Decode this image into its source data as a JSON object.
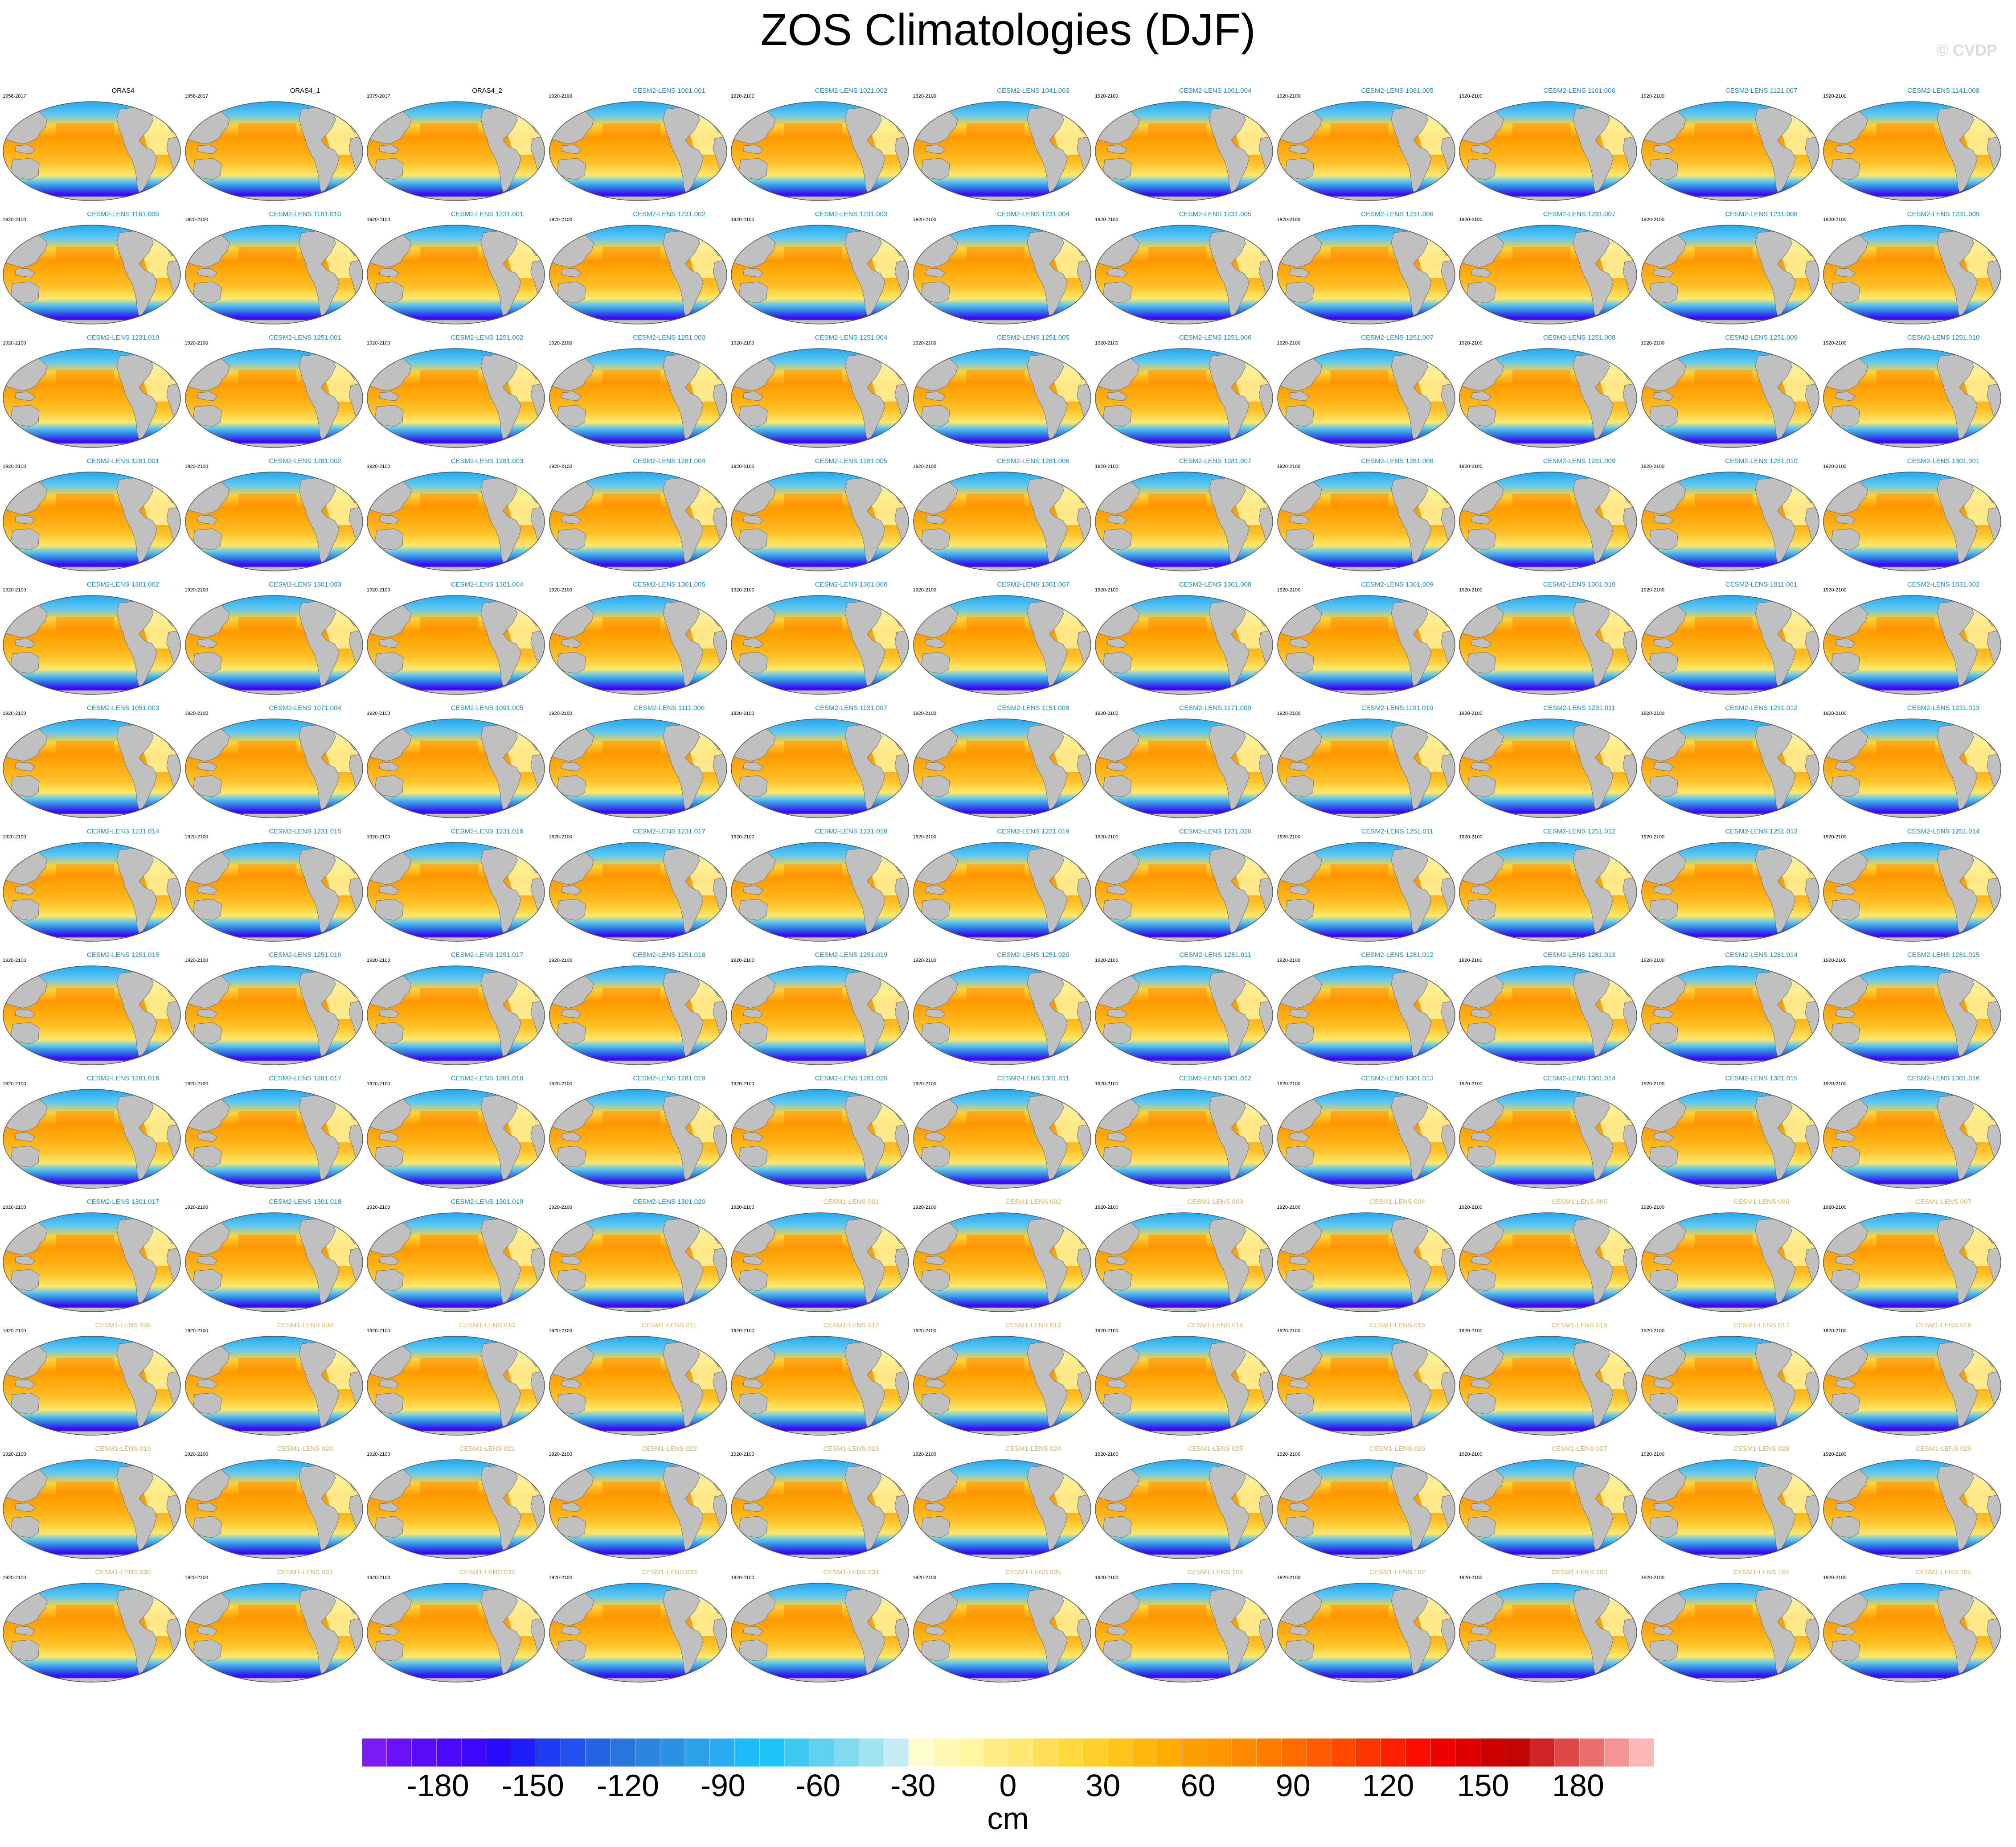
{
  "title": "ZOS Climatologies (DJF)",
  "watermark": "© CVDP",
  "colors": {
    "land": "#c0c0c0",
    "title_obs": "#000000",
    "title_cesm2": "#1e90d8",
    "title_cesm1": "#d8b86a"
  },
  "chart_data": {
    "type": "heatmap",
    "description_type": "map-panel-grid",
    "title": "ZOS Climatologies (DJF)",
    "projection": "robinson",
    "panels": [
      {
        "name": "ORAS4",
        "years": "1958-2017",
        "group": "obs"
      },
      {
        "name": "ORAS4_1",
        "years": "1958-2017",
        "group": "obs"
      },
      {
        "name": "ORAS4_2",
        "years": "1979-2017",
        "group": "obs"
      },
      {
        "name": "CESM2-LENS 1001.001",
        "years": "1920-2100",
        "group": "cesm2"
      },
      {
        "name": "CESM2-LENS 1021.002",
        "years": "1920-2100",
        "group": "cesm2"
      },
      {
        "name": "CESM2-LENS 1041.003",
        "years": "1920-2100",
        "group": "cesm2"
      },
      {
        "name": "CESM2-LENS 1061.004",
        "years": "1920-2100",
        "group": "cesm2"
      },
      {
        "name": "CESM2-LENS 1081.005",
        "years": "1920-2100",
        "group": "cesm2"
      },
      {
        "name": "CESM2-LENS 1101.006",
        "years": "1920-2100",
        "group": "cesm2"
      },
      {
        "name": "CESM2-LENS 1121.007",
        "years": "1920-2100",
        "group": "cesm2"
      },
      {
        "name": "CESM2-LENS 1141.008",
        "years": "1920-2100",
        "group": "cesm2"
      },
      {
        "name": "CESM2-LENS 1161.009",
        "years": "1920-2100",
        "group": "cesm2"
      },
      {
        "name": "CESM2-LENS 1181.010",
        "years": "1920-2100",
        "group": "cesm2"
      },
      {
        "name": "CESM2-LENS 1231.001",
        "years": "1920-2100",
        "group": "cesm2"
      },
      {
        "name": "CESM2-LENS 1231.002",
        "years": "1920-2100",
        "group": "cesm2"
      },
      {
        "name": "CESM2-LENS 1231.003",
        "years": "1920-2100",
        "group": "cesm2"
      },
      {
        "name": "CESM2-LENS 1231.004",
        "years": "1920-2100",
        "group": "cesm2"
      },
      {
        "name": "CESM2-LENS 1231.005",
        "years": "1920-2100",
        "group": "cesm2"
      },
      {
        "name": "CESM2-LENS 1231.006",
        "years": "1920-2100",
        "group": "cesm2"
      },
      {
        "name": "CESM2-LENS 1231.007",
        "years": "1920-2100",
        "group": "cesm2"
      },
      {
        "name": "CESM2-LENS 1231.008",
        "years": "1920-2100",
        "group": "cesm2"
      },
      {
        "name": "CESM2-LENS 1231.009",
        "years": "1920-2100",
        "group": "cesm2"
      },
      {
        "name": "CESM2-LENS 1231.010",
        "years": "1920-2100",
        "group": "cesm2"
      },
      {
        "name": "CESM2-LENS 1251.001",
        "years": "1920-2100",
        "group": "cesm2"
      },
      {
        "name": "CESM2-LENS 1251.002",
        "years": "1920-2100",
        "group": "cesm2"
      },
      {
        "name": "CESM2-LENS 1251.003",
        "years": "1920-2100",
        "group": "cesm2"
      },
      {
        "name": "CESM2-LENS 1251.004",
        "years": "1920-2100",
        "group": "cesm2"
      },
      {
        "name": "CESM2-LENS 1251.005",
        "years": "1920-2100",
        "group": "cesm2"
      },
      {
        "name": "CESM2-LENS 1251.006",
        "years": "1920-2100",
        "group": "cesm2"
      },
      {
        "name": "CESM2-LENS 1251.007",
        "years": "1920-2100",
        "group": "cesm2"
      },
      {
        "name": "CESM2-LENS 1251.008",
        "years": "1920-2100",
        "group": "cesm2"
      },
      {
        "name": "CESM2-LENS 1251.009",
        "years": "1920-2100",
        "group": "cesm2"
      },
      {
        "name": "CESM2-LENS 1251.010",
        "years": "1920-2100",
        "group": "cesm2"
      },
      {
        "name": "CESM2-LENS 1281.001",
        "years": "1920-2100",
        "group": "cesm2"
      },
      {
        "name": "CESM2-LENS 1281.002",
        "years": "1920-2100",
        "group": "cesm2"
      },
      {
        "name": "CESM2-LENS 1281.003",
        "years": "1920-2100",
        "group": "cesm2"
      },
      {
        "name": "CESM2-LENS 1281.004",
        "years": "1920-2100",
        "group": "cesm2"
      },
      {
        "name": "CESM2-LENS 1281.005",
        "years": "1920-2100",
        "group": "cesm2"
      },
      {
        "name": "CESM2-LENS 1281.006",
        "years": "1920-2100",
        "group": "cesm2"
      },
      {
        "name": "CESM2-LENS 1281.007",
        "years": "1920-2100",
        "group": "cesm2"
      },
      {
        "name": "CESM2-LENS 1281.008",
        "years": "1920-2100",
        "group": "cesm2"
      },
      {
        "name": "CESM2-LENS 1281.009",
        "years": "1920-2100",
        "group": "cesm2"
      },
      {
        "name": "CESM2-LENS 1281.010",
        "years": "1920-2100",
        "group": "cesm2"
      },
      {
        "name": "CESM2-LENS 1301.001",
        "years": "1920-2100",
        "group": "cesm2"
      },
      {
        "name": "CESM2-LENS 1301.002",
        "years": "1920-2100",
        "group": "cesm2"
      },
      {
        "name": "CESM2-LENS 1301.003",
        "years": "1920-2100",
        "group": "cesm2"
      },
      {
        "name": "CESM2-LENS 1301.004",
        "years": "1920-2100",
        "group": "cesm2"
      },
      {
        "name": "CESM2-LENS 1301.005",
        "years": "1920-2100",
        "group": "cesm2"
      },
      {
        "name": "CESM2-LENS 1301.006",
        "years": "1920-2100",
        "group": "cesm2"
      },
      {
        "name": "CESM2-LENS 1301.007",
        "years": "1920-2100",
        "group": "cesm2"
      },
      {
        "name": "CESM2-LENS 1301.008",
        "years": "1920-2100",
        "group": "cesm2"
      },
      {
        "name": "CESM2-LENS 1301.009",
        "years": "1920-2100",
        "group": "cesm2"
      },
      {
        "name": "CESM2-LENS 1301.010",
        "years": "1920-2100",
        "group": "cesm2"
      },
      {
        "name": "CESM2-LENS 1011.001",
        "years": "1920-2100",
        "group": "cesm2"
      },
      {
        "name": "CESM2-LENS 1031.002",
        "years": "1920-2100",
        "group": "cesm2"
      },
      {
        "name": "CESM2-LENS 1051.003",
        "years": "1920-2100",
        "group": "cesm2"
      },
      {
        "name": "CESM2-LENS 1071.004",
        "years": "1920-2100",
        "group": "cesm2"
      },
      {
        "name": "CESM2-LENS 1091.005",
        "years": "1920-2100",
        "group": "cesm2"
      },
      {
        "name": "CESM2-LENS 1111.006",
        "years": "1920-2100",
        "group": "cesm2"
      },
      {
        "name": "CESM2-LENS 1131.007",
        "years": "1920-2100",
        "group": "cesm2"
      },
      {
        "name": "CESM2-LENS 1151.008",
        "years": "1920-2100",
        "group": "cesm2"
      },
      {
        "name": "CESM2-LENS 1171.009",
        "years": "1920-2100",
        "group": "cesm2"
      },
      {
        "name": "CESM2-LENS 1191.010",
        "years": "1920-2100",
        "group": "cesm2"
      },
      {
        "name": "CESM2-LENS 1231.011",
        "years": "1920-2100",
        "group": "cesm2"
      },
      {
        "name": "CESM2-LENS 1231.012",
        "years": "1920-2100",
        "group": "cesm2"
      },
      {
        "name": "CESM2-LENS 1231.013",
        "years": "1920-2100",
        "group": "cesm2"
      },
      {
        "name": "CESM2-LENS 1231.014",
        "years": "1920-2100",
        "group": "cesm2"
      },
      {
        "name": "CESM2-LENS 1231.015",
        "years": "1920-2100",
        "group": "cesm2"
      },
      {
        "name": "CESM2-LENS 1231.016",
        "years": "1920-2100",
        "group": "cesm2"
      },
      {
        "name": "CESM2-LENS 1231.017",
        "years": "1920-2100",
        "group": "cesm2"
      },
      {
        "name": "CESM2-LENS 1231.018",
        "years": "1920-2100",
        "group": "cesm2"
      },
      {
        "name": "CESM2-LENS 1231.019",
        "years": "1920-2100",
        "group": "cesm2"
      },
      {
        "name": "CESM2-LENS 1231.020",
        "years": "1920-2100",
        "group": "cesm2"
      },
      {
        "name": "CESM2-LENS 1251.011",
        "years": "1920-2100",
        "group": "cesm2"
      },
      {
        "name": "CESM2-LENS 1251.012",
        "years": "1920-2100",
        "group": "cesm2"
      },
      {
        "name": "CESM2-LENS 1251.013",
        "years": "1920-2100",
        "group": "cesm2"
      },
      {
        "name": "CESM2-LENS 1251.014",
        "years": "1920-2100",
        "group": "cesm2"
      },
      {
        "name": "CESM2-LENS 1251.015",
        "years": "1920-2100",
        "group": "cesm2"
      },
      {
        "name": "CESM2-LENS 1251.016",
        "years": "1920-2100",
        "group": "cesm2"
      },
      {
        "name": "CESM2-LENS 1251.017",
        "years": "1920-2100",
        "group": "cesm2"
      },
      {
        "name": "CESM2-LENS 1251.018",
        "years": "1920-2100",
        "group": "cesm2"
      },
      {
        "name": "CESM2-LENS 1251.019",
        "years": "1920-2100",
        "group": "cesm2"
      },
      {
        "name": "CESM2-LENS 1251.020",
        "years": "1920-2100",
        "group": "cesm2"
      },
      {
        "name": "CESM2-LENS 1281.011",
        "years": "1920-2100",
        "group": "cesm2"
      },
      {
        "name": "CESM2-LENS 1281.012",
        "years": "1920-2100",
        "group": "cesm2"
      },
      {
        "name": "CESM2-LENS 1281.013",
        "years": "1920-2100",
        "group": "cesm2"
      },
      {
        "name": "CESM2-LENS 1281.014",
        "years": "1920-2100",
        "group": "cesm2"
      },
      {
        "name": "CESM2-LENS 1281.015",
        "years": "1920-2100",
        "group": "cesm2"
      },
      {
        "name": "CESM2-LENS 1281.016",
        "years": "1920-2100",
        "group": "cesm2"
      },
      {
        "name": "CESM2-LENS 1281.017",
        "years": "1920-2100",
        "group": "cesm2"
      },
      {
        "name": "CESM2-LENS 1281.018",
        "years": "1920-2100",
        "group": "cesm2"
      },
      {
        "name": "CESM2-LENS 1281.019",
        "years": "1920-2100",
        "group": "cesm2"
      },
      {
        "name": "CESM2-LENS 1281.020",
        "years": "1920-2100",
        "group": "cesm2"
      },
      {
        "name": "CESM2-LENS 1301.011",
        "years": "1920-2100",
        "group": "cesm2"
      },
      {
        "name": "CESM2-LENS 1301.012",
        "years": "1920-2100",
        "group": "cesm2"
      },
      {
        "name": "CESM2-LENS 1301.013",
        "years": "1920-2100",
        "group": "cesm2"
      },
      {
        "name": "CESM2-LENS 1301.014",
        "years": "1920-2100",
        "group": "cesm2"
      },
      {
        "name": "CESM2-LENS 1301.015",
        "years": "1920-2100",
        "group": "cesm2"
      },
      {
        "name": "CESM2-LENS 1301.016",
        "years": "1920-2100",
        "group": "cesm2"
      },
      {
        "name": "CESM2-LENS 1301.017",
        "years": "1920-2100",
        "group": "cesm2"
      },
      {
        "name": "CESM2-LENS 1301.018",
        "years": "1920-2100",
        "group": "cesm2"
      },
      {
        "name": "CESM2-LENS 1301.019",
        "years": "1920-2100",
        "group": "cesm2"
      },
      {
        "name": "CESM2-LENS 1301.020",
        "years": "1920-2100",
        "group": "cesm2"
      },
      {
        "name": "CESM1-LENS 001",
        "years": "1920-2100",
        "group": "cesm1"
      },
      {
        "name": "CESM1-LENS 002",
        "years": "1920-2100",
        "group": "cesm1"
      },
      {
        "name": "CESM1-LENS 003",
        "years": "1920-2100",
        "group": "cesm1"
      },
      {
        "name": "CESM1-LENS 004",
        "years": "1920-2100",
        "group": "cesm1"
      },
      {
        "name": "CESM1-LENS 005",
        "years": "1920-2100",
        "group": "cesm1"
      },
      {
        "name": "CESM1-LENS 006",
        "years": "1920-2100",
        "group": "cesm1"
      },
      {
        "name": "CESM1-LENS 007",
        "years": "1920-2100",
        "group": "cesm1"
      },
      {
        "name": "CESM1-LENS 008",
        "years": "1920-2100",
        "group": "cesm1"
      },
      {
        "name": "CESM1-LENS 009",
        "years": "1920-2100",
        "group": "cesm1"
      },
      {
        "name": "CESM1-LENS 010",
        "years": "1920-2100",
        "group": "cesm1"
      },
      {
        "name": "CESM1-LENS 011",
        "years": "1920-2100",
        "group": "cesm1"
      },
      {
        "name": "CESM1-LENS 012",
        "years": "1920-2100",
        "group": "cesm1"
      },
      {
        "name": "CESM1-LENS 013",
        "years": "1920-2100",
        "group": "cesm1"
      },
      {
        "name": "CESM1-LENS 014",
        "years": "1920-2100",
        "group": "cesm1"
      },
      {
        "name": "CESM1-LENS 015",
        "years": "1920-2100",
        "group": "cesm1"
      },
      {
        "name": "CESM1-LENS 016",
        "years": "1920-2100",
        "group": "cesm1"
      },
      {
        "name": "CESM1-LENS 017",
        "years": "1920-2100",
        "group": "cesm1"
      },
      {
        "name": "CESM1-LENS 018",
        "years": "1920-2100",
        "group": "cesm1"
      },
      {
        "name": "CESM1-LENS 019",
        "years": "1920-2100",
        "group": "cesm1"
      },
      {
        "name": "CESM1-LENS 020",
        "years": "1920-2100",
        "group": "cesm1"
      },
      {
        "name": "CESM1-LENS 021",
        "years": "1920-2100",
        "group": "cesm1"
      },
      {
        "name": "CESM1-LENS 022",
        "years": "1920-2100",
        "group": "cesm1"
      },
      {
        "name": "CESM1-LENS 023",
        "years": "1920-2100",
        "group": "cesm1"
      },
      {
        "name": "CESM1-LENS 024",
        "years": "1920-2100",
        "group": "cesm1"
      },
      {
        "name": "CESM1-LENS 025",
        "years": "1920-2100",
        "group": "cesm1"
      },
      {
        "name": "CESM1-LENS 026",
        "years": "1920-2100",
        "group": "cesm1"
      },
      {
        "name": "CESM1-LENS 027",
        "years": "1920-2100",
        "group": "cesm1"
      },
      {
        "name": "CESM1-LENS 028",
        "years": "1920-2100",
        "group": "cesm1"
      },
      {
        "name": "CESM1-LENS 029",
        "years": "1920-2100",
        "group": "cesm1"
      },
      {
        "name": "CESM1-LENS 030",
        "years": "1920-2100",
        "group": "cesm1"
      },
      {
        "name": "CESM1-LENS 031",
        "years": "1920-2100",
        "group": "cesm1"
      },
      {
        "name": "CESM1-LENS 032",
        "years": "1920-2100",
        "group": "cesm1"
      },
      {
        "name": "CESM1-LENS 033",
        "years": "1920-2100",
        "group": "cesm1"
      },
      {
        "name": "CESM1-LENS 034",
        "years": "1920-2100",
        "group": "cesm1"
      },
      {
        "name": "CESM1-LENS 035",
        "years": "1920-2100",
        "group": "cesm1"
      },
      {
        "name": "CESM1-LENS 101",
        "years": "1920-2100",
        "group": "cesm1"
      },
      {
        "name": "CESM1-LENS 102",
        "years": "1920-2100",
        "group": "cesm1"
      },
      {
        "name": "CESM1-LENS 103",
        "years": "1920-2100",
        "group": "cesm1"
      },
      {
        "name": "CESM1-LENS 104",
        "years": "1920-2100",
        "group": "cesm1"
      },
      {
        "name": "CESM1-LENS 105",
        "years": "1920-2100",
        "group": "cesm1"
      }
    ],
    "colorbar": {
      "label": "cm",
      "ticks": [
        -180,
        -150,
        -120,
        -90,
        -60,
        -30,
        0,
        30,
        60,
        90,
        120,
        150,
        180
      ],
      "range": [
        -204,
        204
      ],
      "interval": 6,
      "colors": [
        "#7a1df2",
        "#6a12f7",
        "#5a0dfa",
        "#4a0afc",
        "#3a08fd",
        "#2a0afd",
        "#1f1efa",
        "#1f3af5",
        "#2250ea",
        "#2563e3",
        "#2a74dc",
        "#2d84dc",
        "#2e92e2",
        "#2ea0ea",
        "#29adf2",
        "#1cbaf7",
        "#1ec4f5",
        "#3dcaf0",
        "#5ed1ee",
        "#80d9ef",
        "#a3e2f1",
        "#c5ecf4",
        "#fffdd0",
        "#fff8b8",
        "#fff4a0",
        "#ffee88",
        "#ffe870",
        "#ffe058",
        "#ffd840",
        "#ffcf2c",
        "#ffc41c",
        "#ffb80c",
        "#ffac00",
        "#ffa000",
        "#ff9500",
        "#ff8a00",
        "#ff7c00",
        "#ff6c00",
        "#ff5a00",
        "#ff4800",
        "#ff3400",
        "#ff2000",
        "#f90e00",
        "#ec0000",
        "#dc0000",
        "#cc0000",
        "#c00404",
        "#cc2424",
        "#dc4848",
        "#ea6e6e",
        "#f39494",
        "#fbb8b8"
      ]
    }
  }
}
